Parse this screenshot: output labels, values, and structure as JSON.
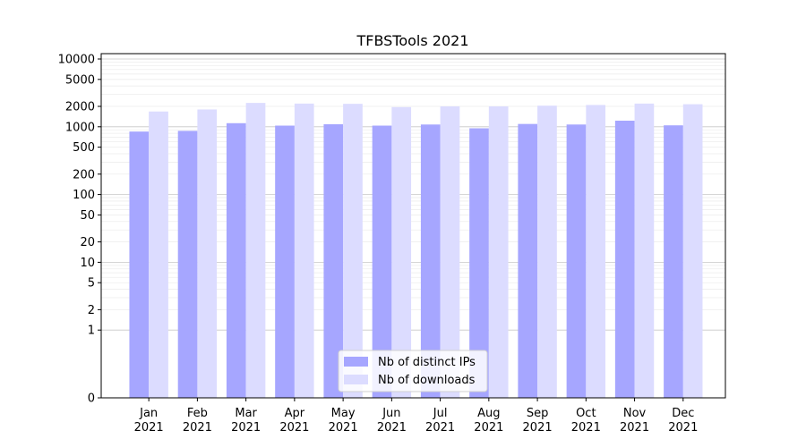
{
  "chart_data": {
    "type": "bar",
    "title": "TFBSTools 2021",
    "xlabel": "",
    "ylabel": "",
    "y_scale": "symlog",
    "ylim": [
      0,
      12000
    ],
    "y_ticks": [
      0,
      1,
      2,
      5,
      10,
      20,
      50,
      100,
      200,
      500,
      1000,
      2000,
      5000,
      10000
    ],
    "categories": [
      "Jan\n2021",
      "Feb\n2021",
      "Mar\n2021",
      "Apr\n2021",
      "May\n2021",
      "Jun\n2021",
      "Jul\n2021",
      "Aug\n2021",
      "Sep\n2021",
      "Oct\n2021",
      "Nov\n2021",
      "Dec\n2021"
    ],
    "category_lines": [
      [
        "Jan",
        "2021"
      ],
      [
        "Feb",
        "2021"
      ],
      [
        "Mar",
        "2021"
      ],
      [
        "Apr",
        "2021"
      ],
      [
        "May",
        "2021"
      ],
      [
        "Jun",
        "2021"
      ],
      [
        "Jul",
        "2021"
      ],
      [
        "Aug",
        "2021"
      ],
      [
        "Sep",
        "2021"
      ],
      [
        "Oct",
        "2021"
      ],
      [
        "Nov",
        "2021"
      ],
      [
        "Dec",
        "2021"
      ]
    ],
    "series": [
      {
        "name": "Nb of distinct IPs",
        "color": "#a6a6ff",
        "values": [
          850,
          870,
          1130,
          1040,
          1090,
          1040,
          1080,
          950,
          1100,
          1080,
          1230,
          1050
        ]
      },
      {
        "name": "Nb of downloads",
        "color": "#dcdcff",
        "values": [
          1680,
          1800,
          2250,
          2200,
          2180,
          1950,
          2000,
          2000,
          2050,
          2100,
          2200,
          2150
        ]
      }
    ],
    "grid": true,
    "legend_position": "bottom-center"
  }
}
